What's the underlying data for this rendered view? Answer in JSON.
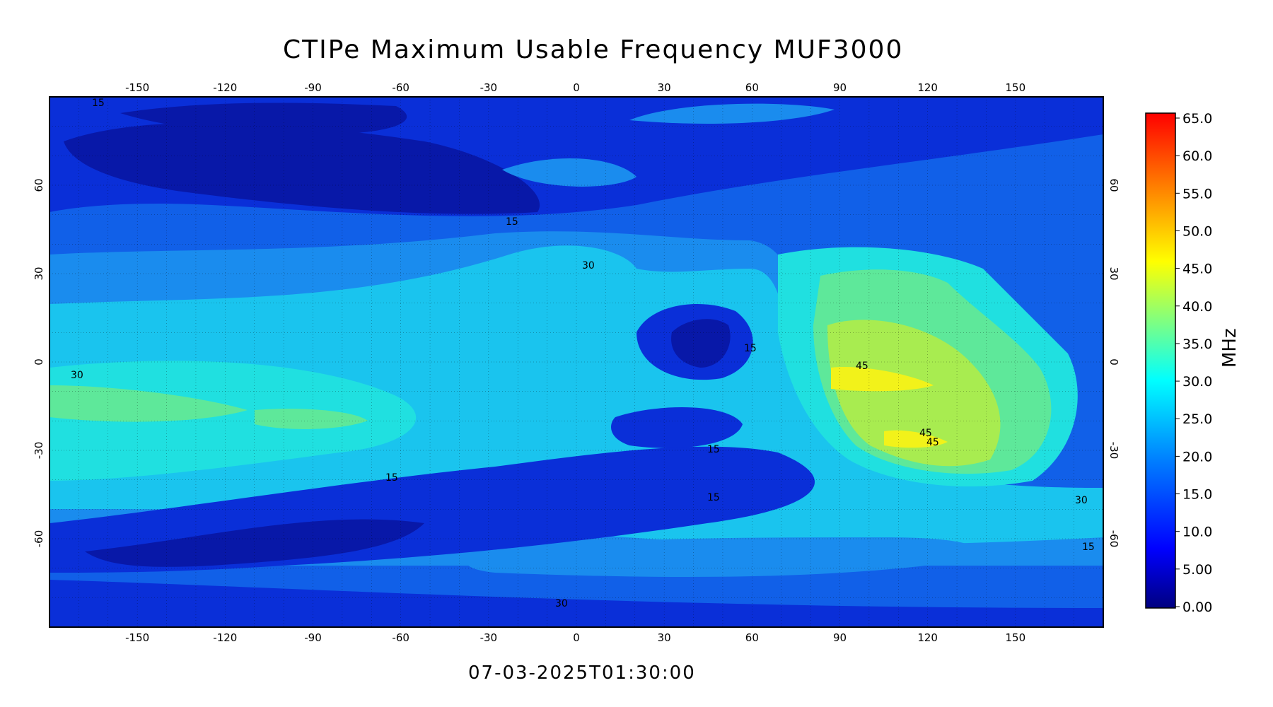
{
  "title": "CTIPe Maximum Usable Frequency MUF3000",
  "timestamp": "07-03-2025T01:30:00",
  "map": {
    "lon_ticks": [
      "-150",
      "-120",
      "-90",
      "-60",
      "-30",
      "0",
      "30",
      "60",
      "90",
      "120",
      "150"
    ],
    "lat_ticks": [
      "60",
      "30",
      "0",
      "-30",
      "-60"
    ],
    "contour_labels": [
      "15",
      "15",
      "30",
      "30",
      "45",
      "45",
      "45",
      "15",
      "15",
      "15",
      "30",
      "15",
      "15",
      "30"
    ],
    "colors": {
      "deep": "#0818a8",
      "low": "#0a2fd8",
      "mid": "#1160e8",
      "mid2": "#1a8cee",
      "cyan": "#1ac4ee",
      "aqua": "#20e0e0",
      "green": "#5ee89a",
      "lime": "#a8ec50",
      "yellow": "#f2f21a"
    }
  },
  "colorbar": {
    "unit": "MHz",
    "ticks": [
      "65.0",
      "60.0",
      "55.0",
      "50.0",
      "45.0",
      "40.0",
      "35.0",
      "30.0",
      "25.0",
      "20.0",
      "15.0",
      "10.0",
      "5.00",
      "0.00"
    ]
  }
}
